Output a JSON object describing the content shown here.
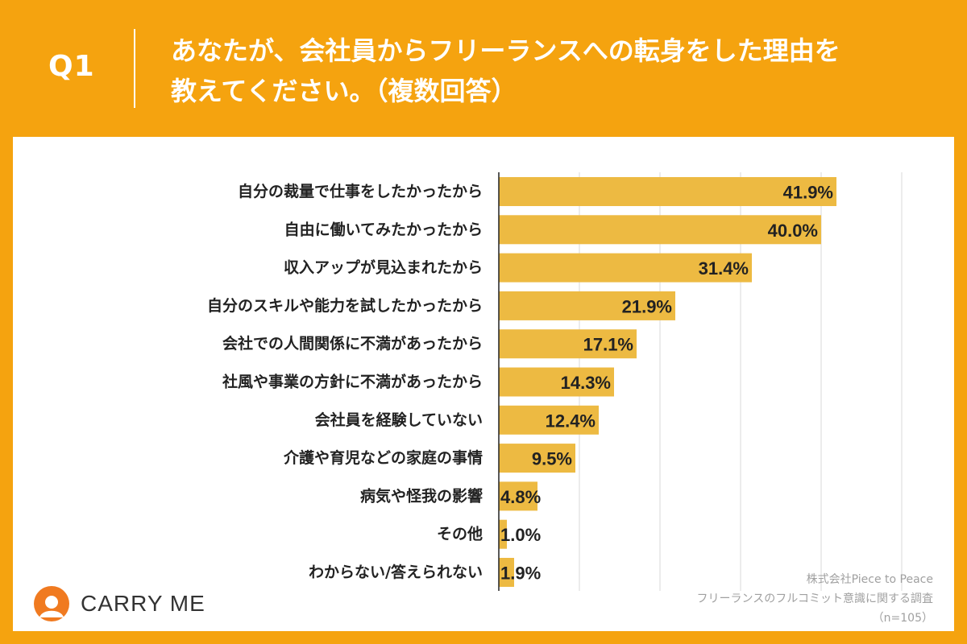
{
  "header": {
    "question_label": "Q1",
    "question_line1": "あなたが、会社員からフリーランスへの転身をした理由を",
    "question_line2": "教えてください。（複数回答）"
  },
  "brand": {
    "name": "CARRY ME",
    "accent_color": "#F5A30F",
    "bar_color": "#EDBA42",
    "logo_color": "#F07A20"
  },
  "source": {
    "company": "株式会社Piece to Peace",
    "survey": "フリーランスのフルコミット意識に関する調査",
    "sample": "（n=105）"
  },
  "chart_data": {
    "type": "bar",
    "orientation": "horizontal",
    "title": "",
    "xlabel": "",
    "ylabel": "",
    "xlim": [
      0,
      50
    ],
    "grid": true,
    "categories": [
      "自分の裁量で仕事をしたかったから",
      "自由に働いてみたかったから",
      "収入アップが見込まれたから",
      "自分のスキルや能力を試したかったから",
      "会社での人間関係に不満があったから",
      "社風や事業の方針に不満があったから",
      "会社員を経験していない",
      "介護や育児などの家庭の事情",
      "病気や怪我の影響",
      "その他",
      "わからない/答えられない"
    ],
    "values": [
      41.9,
      40.0,
      31.4,
      21.9,
      17.1,
      14.3,
      12.4,
      9.5,
      4.8,
      1.0,
      1.9
    ],
    "data_labels": [
      "41.9%",
      "40.0%",
      "31.4%",
      "21.9%",
      "17.1%",
      "14.3%",
      "12.4%",
      "9.5%",
      "4.8%",
      "1.0%",
      "1.9%"
    ]
  }
}
